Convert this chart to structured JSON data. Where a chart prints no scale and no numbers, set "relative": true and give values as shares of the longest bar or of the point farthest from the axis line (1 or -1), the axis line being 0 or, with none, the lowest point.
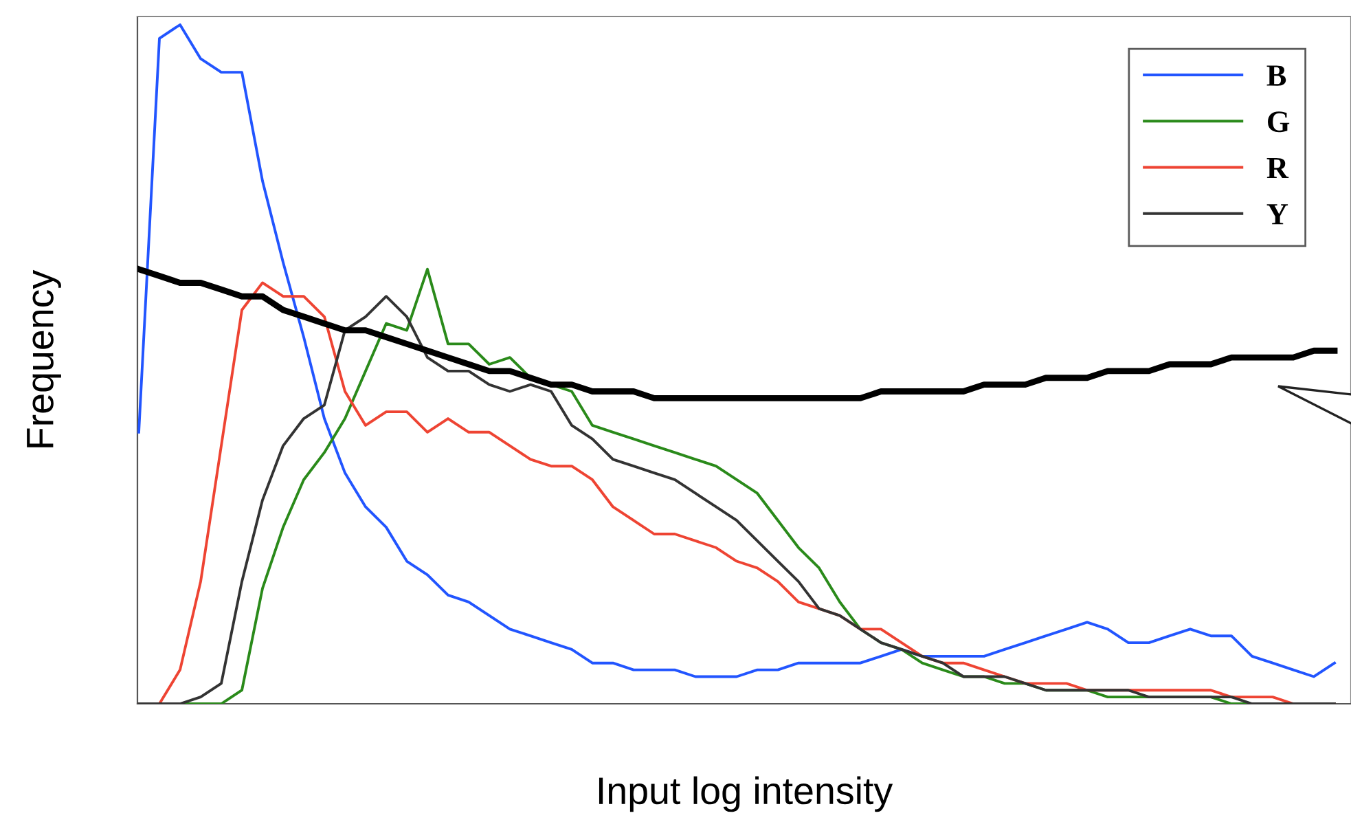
{
  "chart_data": {
    "type": "line",
    "relative": true,
    "xlabel": "Input log intensity",
    "ylabel": "Frequency",
    "legend": "top right",
    "categories": [
      null,
      null,
      null,
      null,
      null,
      null,
      null,
      null,
      null,
      null,
      null,
      null,
      null,
      null,
      null,
      null,
      null,
      null,
      null,
      null,
      null,
      null,
      null,
      null,
      null,
      null,
      null,
      null,
      null,
      null,
      null,
      null,
      null,
      null,
      null,
      null,
      null,
      null,
      null,
      null,
      null,
      null,
      null,
      null,
      null,
      null,
      null,
      null,
      null,
      null,
      null,
      null,
      null,
      null,
      null,
      null,
      null,
      null,
      null
    ],
    "series": [
      {
        "name": "B",
        "color": "#2255ff",
        "values": [
          0.4,
          0.98,
          1.0,
          0.95,
          0.93,
          0.93,
          0.77,
          0.65,
          0.54,
          0.42,
          0.34,
          0.29,
          0.26,
          0.21,
          0.19,
          0.16,
          0.15,
          0.13,
          0.11,
          0.1,
          0.09,
          0.08,
          0.06,
          0.06,
          0.05,
          0.05,
          0.05,
          0.04,
          0.04,
          0.04,
          0.05,
          0.05,
          0.06,
          0.06,
          0.06,
          0.06,
          0.07,
          0.08,
          0.07,
          0.07,
          0.07,
          0.07,
          0.08,
          0.09,
          0.1,
          0.11,
          0.12,
          0.11,
          0.09,
          0.09,
          0.1,
          0.11,
          0.1,
          0.1,
          0.07,
          0.06,
          0.05,
          0.04,
          0.06
        ]
      },
      {
        "name": "G",
        "color": "#2a8a1a",
        "values": [
          0,
          0,
          0,
          0,
          0,
          0.02,
          0.17,
          0.26,
          0.33,
          0.37,
          0.42,
          0.49,
          0.56,
          0.55,
          0.64,
          0.53,
          0.53,
          0.5,
          0.51,
          0.48,
          0.47,
          0.46,
          0.41,
          0.4,
          0.39,
          0.38,
          0.37,
          0.36,
          0.35,
          0.33,
          0.31,
          0.27,
          0.23,
          0.2,
          0.15,
          0.11,
          0.09,
          0.08,
          0.06,
          0.05,
          0.04,
          0.04,
          0.03,
          0.03,
          0.02,
          0.02,
          0.02,
          0.01,
          0.01,
          0.01,
          0.01,
          0.01,
          0.01,
          0,
          0,
          0,
          null,
          null,
          null
        ]
      },
      {
        "name": "R",
        "color": "#ee4433",
        "values": [
          0,
          0,
          0.05,
          0.18,
          0.38,
          0.58,
          0.62,
          0.6,
          0.6,
          0.57,
          0.46,
          0.41,
          0.43,
          0.43,
          0.4,
          0.42,
          0.4,
          0.4,
          0.38,
          0.36,
          0.35,
          0.35,
          0.33,
          0.29,
          0.27,
          0.25,
          0.25,
          0.24,
          0.23,
          0.21,
          0.2,
          0.18,
          0.15,
          0.14,
          0.13,
          0.11,
          0.11,
          0.09,
          0.07,
          0.06,
          0.06,
          0.05,
          0.04,
          0.03,
          0.03,
          0.03,
          0.02,
          0.02,
          0.02,
          0.02,
          0.02,
          0.02,
          0.02,
          0.01,
          0.01,
          0.01,
          0,
          0,
          0
        ]
      },
      {
        "name": "Y",
        "color": "#333333",
        "values": [
          0,
          0,
          0,
          0.01,
          0.03,
          0.18,
          0.3,
          0.38,
          0.42,
          0.44,
          0.55,
          0.57,
          0.6,
          0.57,
          0.51,
          0.49,
          0.49,
          0.47,
          0.46,
          0.47,
          0.46,
          0.41,
          0.39,
          0.36,
          0.35,
          0.34,
          0.33,
          0.31,
          0.29,
          0.27,
          0.24,
          0.21,
          0.18,
          0.14,
          0.13,
          0.11,
          0.09,
          0.08,
          0.07,
          0.06,
          0.04,
          0.04,
          0.04,
          0.03,
          0.02,
          0.02,
          0.02,
          0.02,
          0.02,
          0.01,
          0.01,
          0.01,
          0.01,
          0.01,
          0,
          0,
          0,
          0,
          0
        ]
      },
      {
        "color": "#000000",
        "values": [
          0.64,
          0.63,
          0.62,
          0.62,
          0.61,
          0.6,
          0.6,
          0.58,
          0.57,
          0.56,
          0.55,
          0.55,
          0.54,
          0.53,
          0.52,
          0.51,
          0.5,
          0.49,
          0.49,
          0.48,
          0.47,
          0.47,
          0.46,
          0.46,
          0.46,
          0.45,
          0.45,
          0.45,
          0.45,
          0.45,
          0.45,
          0.45,
          0.45,
          0.45,
          0.45,
          0.45,
          0.46,
          0.46,
          0.46,
          0.46,
          0.46,
          0.47,
          0.47,
          0.47,
          0.48,
          0.48,
          0.48,
          0.49,
          0.49,
          0.49,
          0.5,
          0.5,
          0.5,
          0.51,
          0.51,
          0.51,
          0.51,
          0.52,
          0.52
        ]
      }
    ]
  }
}
